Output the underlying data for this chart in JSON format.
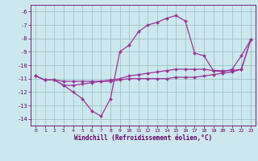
{
  "x": [
    0,
    1,
    2,
    3,
    4,
    5,
    6,
    7,
    8,
    9,
    10,
    11,
    12,
    13,
    14,
    15,
    16,
    17,
    18,
    19,
    20,
    21,
    22,
    23
  ],
  "line1": [
    -10.8,
    -11.1,
    -11.1,
    -11.5,
    -12.0,
    -12.5,
    -13.4,
    -13.8,
    -12.5,
    -9.0,
    -8.5,
    -7.5,
    -7.0,
    -6.8,
    -6.5,
    -6.3,
    -6.7,
    -9.1,
    -9.3,
    -10.4,
    -10.5,
    -10.3,
    -9.3,
    -8.1
  ],
  "line2": [
    -10.8,
    -11.1,
    -11.1,
    -11.5,
    -11.5,
    -11.4,
    -11.3,
    -11.2,
    -11.1,
    -11.0,
    -10.8,
    -10.7,
    -10.6,
    -10.5,
    -10.4,
    -10.3,
    -10.3,
    -10.3,
    -10.3,
    -10.4,
    -10.4,
    -10.4,
    -10.3,
    -8.1
  ],
  "line3": [
    -10.8,
    -11.1,
    -11.1,
    -11.2,
    -11.2,
    -11.2,
    -11.2,
    -11.2,
    -11.2,
    -11.1,
    -11.0,
    -11.0,
    -11.0,
    -11.0,
    -11.0,
    -10.9,
    -10.9,
    -10.9,
    -10.8,
    -10.7,
    -10.6,
    -10.5,
    -10.3,
    -8.1
  ],
  "line_color": "#993399",
  "bg_color": "#cce8ee",
  "grid_color": "#99bbbb",
  "text_color": "#660066",
  "xlabel": "Windchill (Refroidissement éolien,°C)",
  "ylim": [
    -14.5,
    -5.5
  ],
  "xlim": [
    -0.5,
    23.5
  ],
  "yticks": [
    -6,
    -7,
    -8,
    -9,
    -10,
    -11,
    -12,
    -13,
    -14
  ],
  "xticks": [
    0,
    1,
    2,
    3,
    4,
    5,
    6,
    7,
    8,
    9,
    10,
    11,
    12,
    13,
    14,
    15,
    16,
    17,
    18,
    19,
    20,
    21,
    22,
    23
  ]
}
